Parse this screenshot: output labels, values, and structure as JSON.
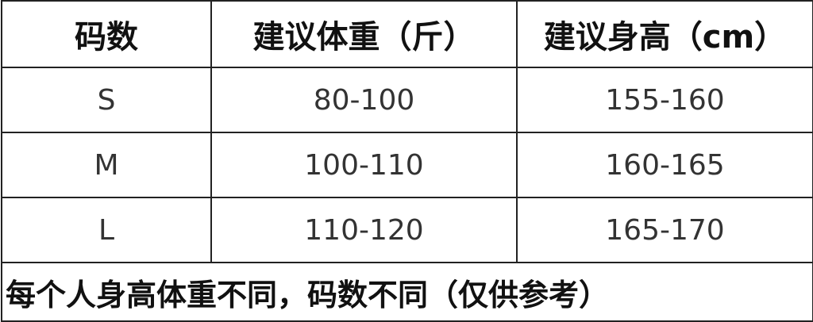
{
  "table": {
    "header": [
      "码数",
      "建议体重（斤）",
      "建议身高（cm）"
    ],
    "rows": [
      [
        "S",
        "80-100",
        "155-160"
      ],
      [
        "M",
        "100-110",
        "160-165"
      ],
      [
        "L",
        "110-120",
        "165-170"
      ]
    ],
    "note": "每个人身高体重不同，码数不同（仅供参考）"
  }
}
